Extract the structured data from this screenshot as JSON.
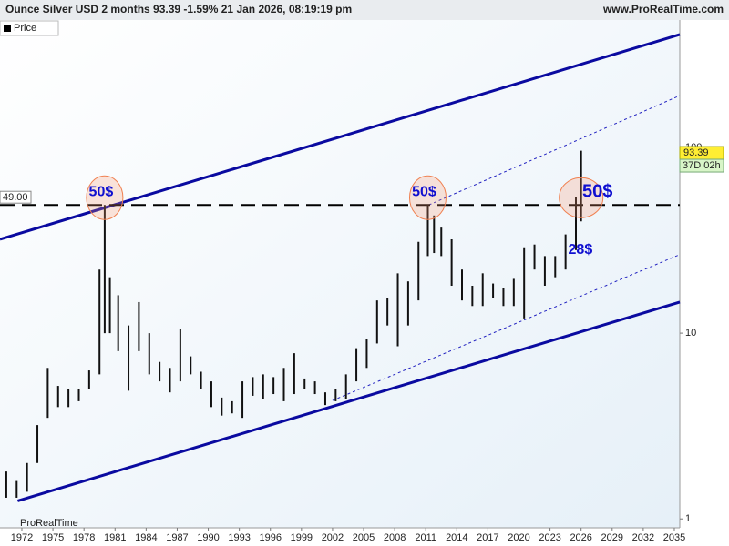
{
  "header": {
    "title": "Ounce Silver USD 2 months 93.39 -1.59% 21 Jan 2026, 08:19:19 pm",
    "site": "www.ProRealTime.com",
    "legend": "Price",
    "brand": "ProRealTime"
  },
  "chart_data": {
    "type": "bar",
    "log_scale": true,
    "color": "#111111",
    "xlim": [
      1969.89,
      2035.53
    ],
    "ylim": [
      0.8,
      485
    ],
    "xticks": [
      1972,
      1975,
      1978,
      1981,
      1984,
      1987,
      1990,
      1993,
      1996,
      1999,
      2002,
      2005,
      2008,
      2011,
      2014,
      2017,
      2020,
      2023,
      2026,
      2029,
      2032,
      2035
    ],
    "yticks": [
      1,
      10,
      100
    ],
    "x": [
      1970.5,
      1971.5,
      1972.5,
      1973.5,
      1974.5,
      1975.5,
      1976.5,
      1977.5,
      1978.5,
      1979.5,
      1980.0,
      1980.5,
      1981.3,
      1982.3,
      1983.3,
      1984.3,
      1985.3,
      1986.3,
      1987.3,
      1988.3,
      1989.3,
      1990.3,
      1991.3,
      1992.3,
      1993.3,
      1994.3,
      1995.3,
      1996.3,
      1997.3,
      1998.3,
      1999.3,
      2000.3,
      2001.3,
      2002.3,
      2003.3,
      2004.3,
      2005.3,
      2006.3,
      2007.3,
      2008.3,
      2009.3,
      2010.3,
      2011.2,
      2011.8,
      2012.5,
      2013.5,
      2014.5,
      2015.5,
      2016.5,
      2017.5,
      2018.5,
      2019.5,
      2020.5,
      2021.5,
      2022.5,
      2023.5,
      2024.5,
      2025.5,
      2026.0
    ],
    "series": [
      {
        "name": "Low",
        "values": [
          1.3,
          1.3,
          1.4,
          2.0,
          3.5,
          4.0,
          4.0,
          4.3,
          5.0,
          6.0,
          10,
          10,
          8,
          4.9,
          8,
          6,
          5.5,
          4.8,
          5.5,
          6,
          5,
          4,
          3.6,
          3.7,
          3.5,
          4.6,
          4.4,
          4.7,
          4.3,
          4.7,
          5,
          4.7,
          4.1,
          4.3,
          4.4,
          5.5,
          6.5,
          8.8,
          11,
          8.5,
          11,
          15,
          26,
          27,
          26,
          18,
          15,
          14,
          14,
          15.5,
          14,
          14,
          12,
          22,
          18,
          20,
          22,
          28,
          40
        ]
      },
      {
        "name": "High",
        "values": [
          1.8,
          1.6,
          2.0,
          3.2,
          6.5,
          5.2,
          5.0,
          5.0,
          6.3,
          22,
          49,
          20,
          16,
          11,
          14.7,
          10,
          7,
          6.5,
          10.5,
          7.5,
          6.2,
          5.5,
          4.5,
          4.3,
          5.5,
          5.8,
          6,
          5.8,
          6.5,
          7.8,
          5.7,
          5.5,
          4.8,
          5,
          6,
          8.3,
          9.3,
          15,
          15.5,
          21,
          19,
          31,
          49,
          43,
          37,
          32,
          22,
          18,
          21,
          18.5,
          17.5,
          19.6,
          29,
          30,
          26,
          26,
          34,
          54,
          96
        ]
      }
    ],
    "last": {
      "value": 93.39,
      "label": "93.39",
      "countdown": "37D 02h"
    },
    "level": {
      "value": 49,
      "label": "49.00"
    },
    "lines": [
      {
        "x": [
          1969.89,
          2035.53
        ],
        "y": [
          32,
          405
        ],
        "color": "#0a0aa0",
        "style": "solid"
      },
      {
        "x": [
          1971.6,
          2035.53
        ],
        "y": [
          1.25,
          14.7
        ],
        "color": "#0a0aa0",
        "style": "solid"
      },
      {
        "x": [
          2011.3,
          2035.53
        ],
        "y": [
          49,
          190
        ],
        "color": "#2020c0",
        "style": "dashed"
      },
      {
        "x": [
          2002.0,
          2035.53
        ],
        "y": [
          4.34,
          26.5
        ],
        "color": "#2020c0",
        "style": "dashed"
      }
    ],
    "annotations": [
      {
        "text": "50$",
        "x": 1980.0,
        "y": 49
      },
      {
        "text": "50$",
        "x": 2011.2,
        "y": 49
      },
      {
        "text": "50$",
        "x": 2026.0,
        "y": 49
      },
      {
        "text": "28$",
        "x": 2025.4,
        "y": 28
      }
    ]
  }
}
